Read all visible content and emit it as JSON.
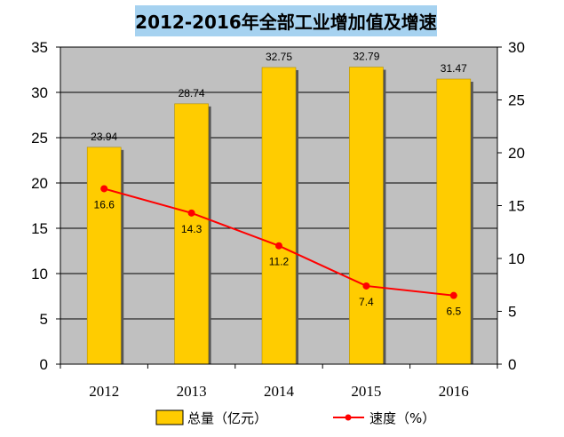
{
  "chart_data": {
    "type": "bar+line",
    "title": "2012-2016年全部工业增加值及增速",
    "categories": [
      "2012",
      "2013",
      "2014",
      "2015",
      "2016"
    ],
    "series": [
      {
        "name": "总量（亿元）",
        "type": "bar",
        "axis": "left",
        "values": [
          23.94,
          28.74,
          32.75,
          32.79,
          31.47
        ],
        "labels": [
          "23.94",
          "28.74",
          "32.75",
          "32.79",
          "31.47"
        ],
        "color": "#ffcc00"
      },
      {
        "name": "速度（%）",
        "type": "line",
        "axis": "right",
        "values": [
          16.6,
          14.3,
          11.2,
          7.4,
          6.5
        ],
        "labels": [
          "16.6",
          "14.3",
          "11.2",
          "7.4",
          "6.5"
        ],
        "color": "#ff0000"
      }
    ],
    "y_left": {
      "min": 0,
      "max": 35,
      "step": 5,
      "ticks": [
        "0",
        "5",
        "10",
        "15",
        "20",
        "25",
        "30",
        "35"
      ]
    },
    "y_right": {
      "min": 0,
      "max": 30,
      "step": 5,
      "ticks": [
        "0",
        "5",
        "10",
        "15",
        "20",
        "25",
        "30"
      ]
    },
    "plot_background": "#c0c0c0",
    "grid": true,
    "legend_position": "bottom"
  }
}
